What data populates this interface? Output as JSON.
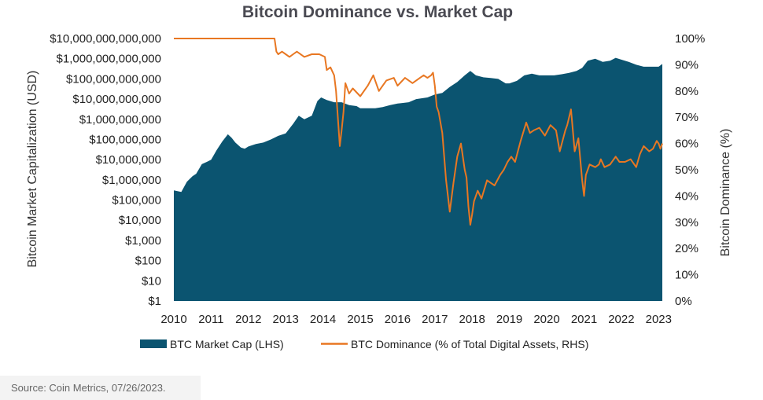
{
  "chart_data": {
    "type": "area",
    "title": "Bitcoin Dominance vs. Market Cap",
    "ylabel_left": "Bitcoin Market Capitalization (USD)",
    "ylabel_right": "Bitcoin Dominance (%)",
    "y_left_scale": "log",
    "y_left_ticks": [
      "$1",
      "$10",
      "$100",
      "$1,000",
      "$10,000",
      "$100,000",
      "$1,000,000",
      "$10,000,000",
      "$100,000,000",
      "$1,000,000,000",
      "$10,000,000,000",
      "$100,000,000,000",
      "$1,000,000,000,000",
      "$10,000,000,000,000"
    ],
    "y_right_ticks": [
      "0%",
      "10%",
      "20%",
      "30%",
      "40%",
      "50%",
      "60%",
      "70%",
      "80%",
      "90%",
      "100%"
    ],
    "x_ticks": [
      "2010",
      "2011",
      "2012",
      "2013",
      "2014",
      "2015",
      "2016",
      "2017",
      "2018",
      "2019",
      "2020",
      "2021",
      "2022",
      "2023"
    ],
    "ylim_left": [
      1,
      10000000000000
    ],
    "ylim_right": [
      0,
      100
    ],
    "xlim": [
      2010.0,
      2023.1
    ],
    "legend_position": "bottom",
    "grid": false,
    "colors": {
      "market_cap": "#0b5470",
      "dominance": "#e87722"
    },
    "series": [
      {
        "name": "BTC Market Cap (LHS)",
        "axis": "left",
        "x": [
          2010.0,
          2010.2,
          2010.35,
          2010.5,
          2010.6,
          2010.75,
          2010.9,
          2011.0,
          2011.15,
          2011.3,
          2011.45,
          2011.55,
          2011.65,
          2011.8,
          2011.9,
          2012.0,
          2012.2,
          2012.4,
          2012.6,
          2012.8,
          2013.0,
          2013.2,
          2013.35,
          2013.5,
          2013.7,
          2013.85,
          2013.95,
          2014.1,
          2014.3,
          2014.5,
          2014.7,
          2014.9,
          2015.0,
          2015.2,
          2015.4,
          2015.6,
          2015.8,
          2016.0,
          2016.3,
          2016.5,
          2016.8,
          2017.0,
          2017.2,
          2017.4,
          2017.6,
          2017.8,
          2017.95,
          2018.1,
          2018.3,
          2018.5,
          2018.7,
          2018.9,
          2019.0,
          2019.2,
          2019.4,
          2019.6,
          2019.8,
          2020.0,
          2020.2,
          2020.4,
          2020.6,
          2020.8,
          2020.95,
          2021.1,
          2021.3,
          2021.5,
          2021.7,
          2021.85,
          2022.0,
          2022.2,
          2022.4,
          2022.6,
          2022.8,
          2023.0,
          2023.1
        ],
        "y": [
          300000,
          250000,
          800000,
          1500000,
          2000000,
          6000000,
          8000000,
          10000000,
          30000000,
          80000000,
          180000000,
          120000000,
          70000000,
          40000000,
          35000000,
          45000000,
          60000000,
          70000000,
          100000000,
          150000000,
          200000000,
          600000000,
          1500000000,
          1000000000,
          1500000000,
          8000000000,
          12000000000,
          9000000000,
          7000000000,
          7000000000,
          5000000000,
          4500000000,
          3500000000,
          3500000000,
          3500000000,
          4000000000,
          5000000000,
          6000000000,
          7000000000,
          10000000000,
          12000000000,
          17000000000,
          20000000000,
          40000000000,
          70000000000,
          150000000000,
          250000000000,
          150000000000,
          120000000000,
          110000000000,
          100000000000,
          60000000000,
          60000000000,
          80000000000,
          150000000000,
          180000000000,
          150000000000,
          150000000000,
          150000000000,
          170000000000,
          200000000000,
          250000000000,
          350000000000,
          800000000000,
          1000000000000,
          700000000000,
          800000000000,
          1100000000000,
          900000000000,
          700000000000,
          500000000000,
          400000000000,
          400000000000,
          400000000000,
          550000000000
        ]
      },
      {
        "name": "BTC Dominance (% of Total Digital Assets, RHS)",
        "axis": "right",
        "x": [
          2010.0,
          2012.7,
          2012.75,
          2012.8,
          2012.9,
          2013.0,
          2013.1,
          2013.2,
          2013.3,
          2013.5,
          2013.7,
          2013.9,
          2014.05,
          2014.1,
          2014.2,
          2014.3,
          2014.35,
          2014.45,
          2014.5,
          2014.55,
          2014.6,
          2014.7,
          2014.8,
          2015.0,
          2015.2,
          2015.35,
          2015.5,
          2015.7,
          2015.9,
          2016.0,
          2016.2,
          2016.4,
          2016.6,
          2016.7,
          2016.8,
          2016.9,
          2016.95,
          2017.0,
          2017.05,
          2017.1,
          2017.2,
          2017.3,
          2017.4,
          2017.5,
          2017.55,
          2017.6,
          2017.7,
          2017.8,
          2017.85,
          2017.9,
          2017.95,
          2018.0,
          2018.05,
          2018.15,
          2018.25,
          2018.4,
          2018.6,
          2018.75,
          2018.85,
          2018.95,
          2019.05,
          2019.15,
          2019.3,
          2019.45,
          2019.55,
          2019.65,
          2019.8,
          2019.95,
          2020.1,
          2020.25,
          2020.35,
          2020.5,
          2020.55,
          2020.65,
          2020.75,
          2020.85,
          2020.95,
          2021.0,
          2021.05,
          2021.15,
          2021.3,
          2021.4,
          2021.45,
          2021.55,
          2021.7,
          2021.85,
          2021.95,
          2022.1,
          2022.25,
          2022.4,
          2022.5,
          2022.6,
          2022.75,
          2022.85,
          2022.95,
          2023.0,
          2023.05,
          2023.1
        ],
        "y": [
          100,
          100,
          95,
          94,
          95,
          94,
          93,
          94,
          95,
          93,
          94,
          94,
          93,
          88,
          89,
          86,
          80,
          59,
          65,
          72,
          83,
          79,
          81,
          78,
          82,
          86,
          80,
          84,
          85,
          82,
          85,
          83,
          85,
          86,
          85,
          86,
          87,
          82,
          74,
          72,
          64,
          46,
          34,
          45,
          50,
          55,
          60,
          50,
          47,
          36,
          29,
          33,
          38,
          42,
          39,
          46,
          44,
          48,
          50,
          53,
          55,
          53,
          61,
          68,
          64,
          65,
          66,
          63,
          67,
          65,
          57,
          65,
          67,
          73,
          57,
          62,
          46,
          40,
          48,
          52,
          51,
          52,
          54,
          51,
          52,
          55,
          53,
          53,
          54,
          51,
          56,
          59,
          57,
          58,
          61,
          60,
          58,
          60
        ]
      }
    ],
    "source": "Source: Coin Metrics, 07/26/2023."
  }
}
